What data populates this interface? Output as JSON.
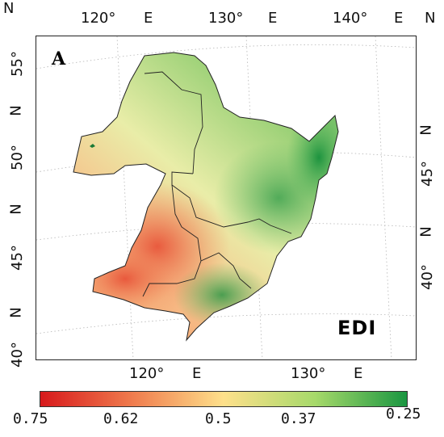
{
  "panel": {
    "letter": "A",
    "index_name": "EDI"
  },
  "axes": {
    "top_labels": [
      {
        "value": "120°",
        "hemi": "E"
      },
      {
        "value": "130°",
        "hemi": "E"
      },
      {
        "value": "140°",
        "hemi": "E"
      }
    ],
    "bottom_labels": [
      {
        "value": "120°",
        "hemi": "E"
      },
      {
        "value": "130°",
        "hemi": "E"
      }
    ],
    "left_labels": [
      {
        "value": "55°",
        "hemi": "N"
      },
      {
        "value": "50°",
        "hemi": "N"
      },
      {
        "value": "45°",
        "hemi": "N"
      },
      {
        "value": "40°",
        "hemi": "N"
      }
    ],
    "right_labels": [
      {
        "value": "45°",
        "hemi": "N"
      },
      {
        "value": "40°",
        "hemi": "N"
      }
    ],
    "corner_top_left": "N",
    "corner_top_right": "N"
  },
  "colorbar": {
    "ticks": [
      "0.75",
      "0.62",
      "0.5",
      "0.37",
      "0.25"
    ],
    "colors": [
      "#d7191c",
      "#ef7b4d",
      "#fee08b",
      "#a6d96a",
      "#1a9641"
    ]
  }
}
